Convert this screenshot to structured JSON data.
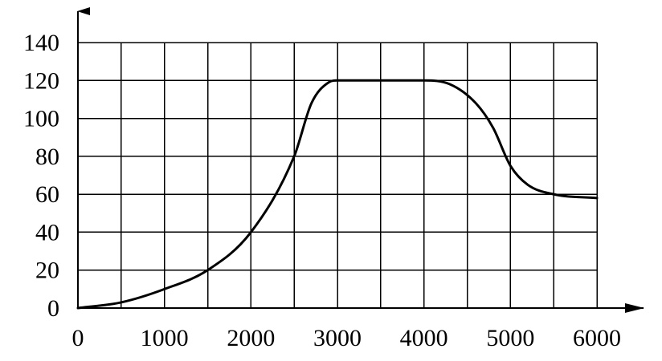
{
  "chart_data": {
    "type": "line",
    "title": "",
    "xlabel": "",
    "ylabel": "",
    "xlim": [
      0,
      6000
    ],
    "ylim": [
      0,
      140
    ],
    "grid": true,
    "x_ticks": [
      0,
      1000,
      2000,
      3000,
      4000,
      5000,
      6000
    ],
    "y_ticks": [
      0,
      20,
      40,
      60,
      80,
      100,
      120,
      140
    ],
    "x_tick_labels": [
      "0",
      "1000",
      "2000",
      "3000",
      "4000",
      "5000",
      "6000"
    ],
    "y_tick_labels": [
      "0",
      "20",
      "40",
      "60",
      "80",
      "100",
      "120",
      "140"
    ],
    "series": [
      {
        "x": [
          0,
          500,
          1000,
          1500,
          2000,
          2500,
          2700,
          2900,
          3000,
          3500,
          4000,
          4300,
          4600,
          4800,
          5000,
          5200,
          5500,
          6000
        ],
        "y": [
          0,
          3,
          10,
          20,
          40,
          80,
          108,
          119,
          120,
          120,
          120,
          118,
          108,
          95,
          75,
          65,
          60,
          58
        ]
      }
    ]
  }
}
